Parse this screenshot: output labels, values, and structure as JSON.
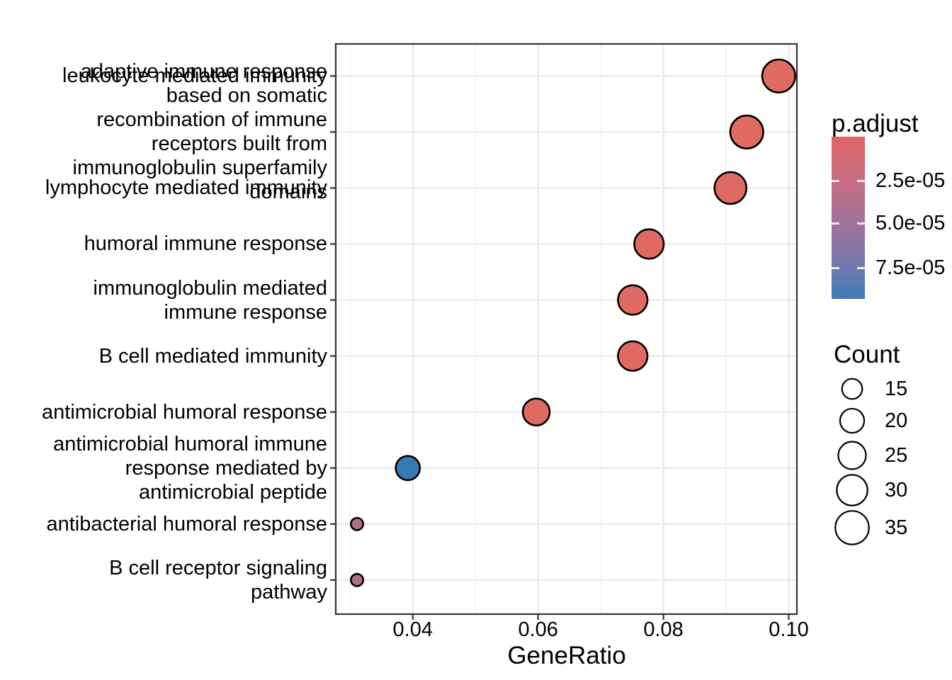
{
  "chart_data": {
    "type": "scatter",
    "title": "",
    "xlabel": "GeneRatio",
    "ylabel": "",
    "grid": true,
    "legend_position": "right",
    "x_axis": {
      "domain": [
        0.0277,
        0.1013
      ],
      "ticks": [
        0.04,
        0.06,
        0.08,
        0.1
      ],
      "tick_labels": [
        "0.04",
        "0.06",
        "0.08",
        "0.10"
      ],
      "minor_ticks": [
        0.03,
        0.05,
        0.07,
        0.09
      ]
    },
    "categories": [
      {
        "label": "leukocyte mediated immunity",
        "lines": [
          "leukocyte mediated immunity"
        ]
      },
      {
        "label": "adaptive immune response based on somatic recombination of immune receptors built from immunoglobulin superfamily domains",
        "lines": [
          "adaptive immune response",
          "based on somatic",
          "recombination of immune",
          "receptors built from",
          "immunoglobulin superfamily",
          "domains"
        ]
      },
      {
        "label": "lymphocyte mediated immunity",
        "lines": [
          "lymphocyte mediated immunity"
        ]
      },
      {
        "label": "humoral immune response",
        "lines": [
          "humoral immune response"
        ]
      },
      {
        "label": "immunoglobulin mediated immune response",
        "lines": [
          "immunoglobulin mediated",
          "immune response"
        ]
      },
      {
        "label": "B cell mediated immunity",
        "lines": [
          "B cell mediated immunity"
        ]
      },
      {
        "label": "antimicrobial humoral response",
        "lines": [
          "antimicrobial humoral response"
        ]
      },
      {
        "label": "antimicrobial humoral immune response mediated by antimicrobial peptide",
        "lines": [
          "antimicrobial humoral immune",
          "response mediated by",
          "antimicrobial peptide"
        ]
      },
      {
        "label": "antibacterial humoral response",
        "lines": [
          "antibacterial humoral response"
        ]
      },
      {
        "label": "B cell receptor signaling pathway",
        "lines": [
          "B cell receptor signaling",
          "pathway"
        ]
      }
    ],
    "points": [
      {
        "category": "leukocyte mediated immunity",
        "gene_ratio": 0.0984,
        "count": 34,
        "p_adjust": 2e-06,
        "color": "#DE6A62"
      },
      {
        "category": "adaptive immune response based on somatic recombination of immune receptors built from immunoglobulin superfamily domains",
        "gene_ratio": 0.0933,
        "count": 34,
        "p_adjust": 2e-06,
        "color": "#DE6A62"
      },
      {
        "category": "lymphocyte mediated immunity",
        "gene_ratio": 0.0907,
        "count": 32,
        "p_adjust": 2e-06,
        "color": "#DE6A62"
      },
      {
        "category": "humoral immune response",
        "gene_ratio": 0.0777,
        "count": 28,
        "p_adjust": 2e-06,
        "color": "#DE6A62"
      },
      {
        "category": "immunoglobulin mediated immune response",
        "gene_ratio": 0.0751,
        "count": 28,
        "p_adjust": 2e-06,
        "color": "#DE6A62"
      },
      {
        "category": "B cell mediated immunity",
        "gene_ratio": 0.0751,
        "count": 28,
        "p_adjust": 2e-06,
        "color": "#DE6A62"
      },
      {
        "category": "antimicrobial humoral response",
        "gene_ratio": 0.0597,
        "count": 24,
        "p_adjust": 3e-06,
        "color": "#DE6A62"
      },
      {
        "category": "antimicrobial humoral immune response mediated by antimicrobial peptide",
        "gene_ratio": 0.0392,
        "count": 20,
        "p_adjust": 9e-05,
        "color": "#3779B5"
      },
      {
        "category": "antibacterial humoral response",
        "gene_ratio": 0.0311,
        "count": 7,
        "p_adjust": 4.5e-05,
        "color": "#B0708C"
      },
      {
        "category": "B cell receptor signaling pathway",
        "gene_ratio": 0.0311,
        "count": 7,
        "p_adjust": 4.5e-05,
        "color": "#B0708C"
      }
    ],
    "legends": {
      "color": {
        "title": "p.adjust",
        "ticks": [
          {
            "label": "2.5e-05",
            "pos": 0.271
          },
          {
            "label": "5.0e-05",
            "pos": 0.533
          },
          {
            "label": "7.5e-05",
            "pos": 0.808
          }
        ],
        "gradient_stops": [
          {
            "color": "#DD6467",
            "pos": 0
          },
          {
            "color": "#C66C81",
            "pos": 0.27
          },
          {
            "color": "#A1729B",
            "pos": 0.53
          },
          {
            "color": "#7179AD",
            "pos": 0.81
          },
          {
            "color": "#3B7CB9",
            "pos": 1
          }
        ]
      },
      "size": {
        "title": "Count",
        "entries": [
          {
            "value": 15,
            "label": "15"
          },
          {
            "value": 20,
            "label": "20"
          },
          {
            "value": 25,
            "label": "25"
          },
          {
            "value": 30,
            "label": "30"
          },
          {
            "value": 35,
            "label": "35"
          }
        ]
      }
    },
    "style": {
      "point_red": "#DE6A62",
      "point_blue": "#3779B5",
      "point_mauve": "#B0708C",
      "point_stroke": "#000000",
      "panel_border": "#333333",
      "grid_major": "#E6E6E6",
      "grid_minor": "#F3F3F3",
      "tick_color": "#333333",
      "text_color": "#000000"
    }
  }
}
